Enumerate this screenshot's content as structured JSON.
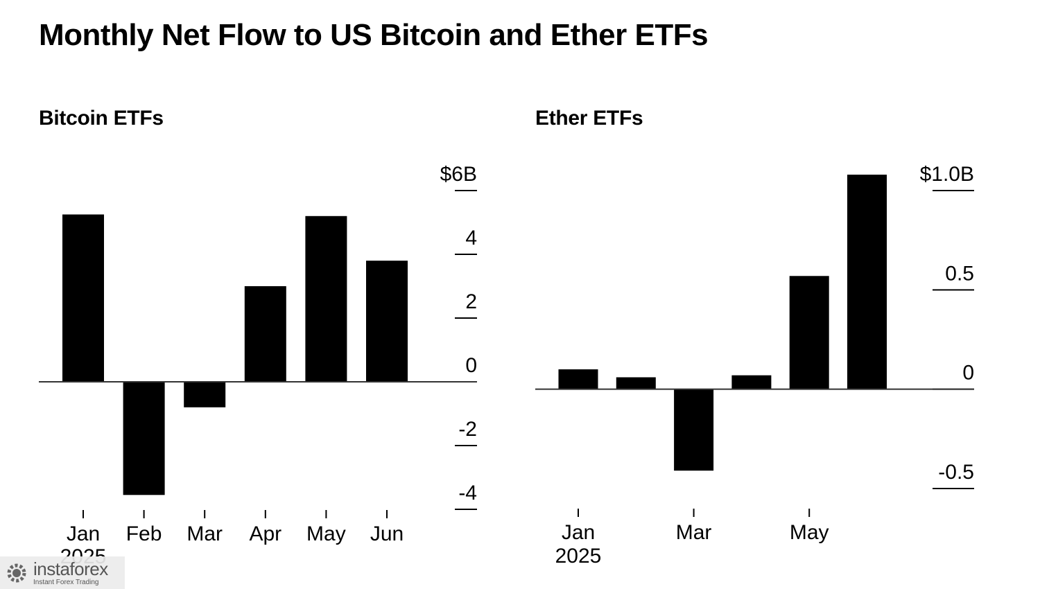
{
  "title": "Monthly Net Flow to US Bitcoin and Ether ETFs",
  "chart_data": [
    {
      "type": "bar",
      "title": "Bitcoin ETFs",
      "categories": [
        "Jan",
        "Feb",
        "Mar",
        "Apr",
        "May",
        "Jun"
      ],
      "year_label": "2025",
      "values": [
        5.25,
        -3.55,
        -0.8,
        3.0,
        5.2,
        3.8
      ],
      "ylim": [
        -4,
        6
      ],
      "yticks": [
        6,
        4,
        2,
        0,
        -2,
        -4
      ],
      "ytick_labels": [
        "$6B",
        "4",
        "2",
        "0",
        "-2",
        "-4"
      ],
      "axis_side": "right",
      "grid": false,
      "bar_color": "#000000"
    },
    {
      "type": "bar",
      "title": "Ether ETFs",
      "categories": [
        "Jan",
        "Feb",
        "Mar",
        "Apr",
        "May",
        "Jun"
      ],
      "xtick_labels": [
        "Jan",
        "",
        "Mar",
        "",
        "May",
        ""
      ],
      "year_label": "2025",
      "values": [
        0.1,
        0.06,
        -0.41,
        0.07,
        0.57,
        1.08
      ],
      "ylim": [
        -0.5,
        1.0
      ],
      "yticks": [
        1.0,
        0.5,
        0,
        -0.5
      ],
      "ytick_labels": [
        "$1.0B",
        "0.5",
        "0",
        "-0.5"
      ],
      "axis_side": "right",
      "grid": false,
      "bar_color": "#000000"
    }
  ],
  "watermark": {
    "brand": "instaforex",
    "tagline": "Instant Forex Trading",
    "icon": "gear-logo-icon"
  }
}
